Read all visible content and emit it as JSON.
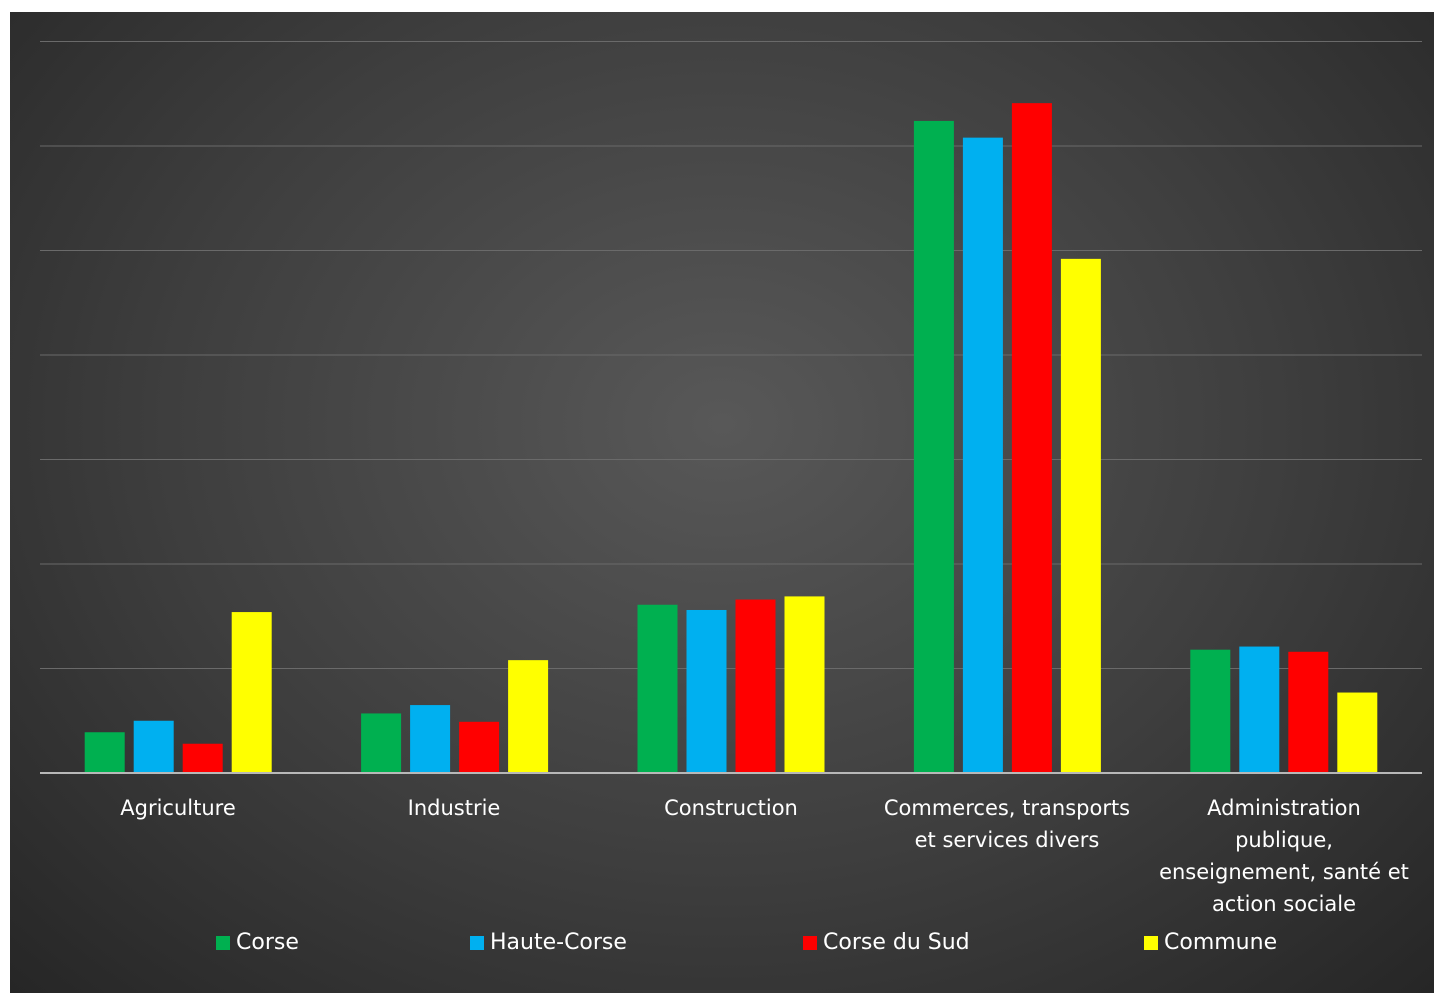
{
  "chart_data": {
    "type": "bar",
    "title": "",
    "xlabel": "",
    "ylabel": "",
    "ylim": [
      0,
      70
    ],
    "y_tick_step": 10,
    "y_tick_labels_shown": false,
    "grid": true,
    "legend_position": "bottom",
    "categories": [
      "Agriculture",
      "Industrie",
      "Construction",
      "Commerces, transports et services divers",
      "Administration publique, enseignement, santé et action sociale"
    ],
    "series": [
      {
        "name": "Corse",
        "color": "#00b050",
        "values": [
          3.9,
          5.7,
          16.1,
          62.4,
          11.8
        ]
      },
      {
        "name": "Haute-Corse",
        "color": "#00b0f0",
        "values": [
          5.0,
          6.5,
          15.6,
          60.8,
          12.1
        ]
      },
      {
        "name": "Corse du Sud",
        "color": "#ff0000",
        "values": [
          2.8,
          4.9,
          16.6,
          64.1,
          11.6
        ]
      },
      {
        "name": "Commune",
        "color": "#ffff00",
        "values": [
          15.4,
          10.8,
          16.9,
          49.2,
          7.7
        ]
      }
    ]
  },
  "category_labels": [
    "Agriculture",
    "Industrie",
    "Construction",
    "Commerces, transports\net services divers",
    "Administration\npublique,\nenseignement, santé et\naction sociale"
  ]
}
